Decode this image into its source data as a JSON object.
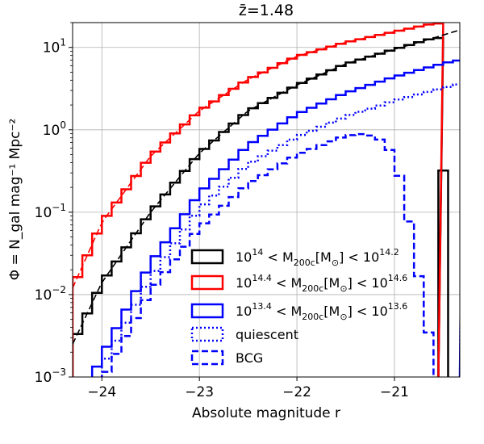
{
  "chart_data": {
    "type": "line",
    "title": "z̄=1.48",
    "xlabel": "Absolute magnitude r",
    "ylabel": "Φ = N_gal mag⁻¹ Mpc⁻²",
    "x_range": [
      -24.3,
      -20.33
    ],
    "y_range": [
      0.001,
      20
    ],
    "y_scale": "log",
    "grid": true,
    "x_ticks": [
      {
        "v": -24,
        "label": "−24"
      },
      {
        "v": -23,
        "label": "−23"
      },
      {
        "v": -22,
        "label": "−22"
      },
      {
        "v": -21,
        "label": "−21"
      }
    ],
    "y_ticks": [
      {
        "v": 0.001,
        "base": "10",
        "exp": "−3"
      },
      {
        "v": 0.01,
        "base": "10",
        "exp": "−2"
      },
      {
        "v": 0.1,
        "base": "10",
        "exp": "−1"
      },
      {
        "v": 1,
        "base": "10",
        "exp": "0"
      },
      {
        "v": 10,
        "base": "10",
        "exp": "1"
      }
    ],
    "legend_position": "lower-right",
    "legend": [
      {
        "key": "black",
        "style": "solid",
        "color": "#000000",
        "parts": [
          "10",
          "14",
          " < M",
          "200c",
          "[M",
          "⊙",
          "] < 10",
          "14.2"
        ]
      },
      {
        "key": "red",
        "style": "solid",
        "color": "#ff0000",
        "parts": [
          "10",
          "14.4",
          " < M",
          "200c",
          "[M",
          "⊙",
          "] < 10",
          "14.6"
        ]
      },
      {
        "key": "blue",
        "style": "solid",
        "color": "#0000ff",
        "parts": [
          "10",
          "13.4",
          " < M",
          "200c",
          "[M",
          "⊙",
          "] < 10",
          "13.6"
        ]
      },
      {
        "key": "quiescent",
        "style": "dotted",
        "color": "#0000ff",
        "parts": [
          "quiescent"
        ]
      },
      {
        "key": "bcg",
        "style": "dashed",
        "color": "#0000ff",
        "parts": [
          "BCG"
        ]
      }
    ],
    "bin_width": 0.1,
    "series": [
      {
        "key": "black",
        "color": "#000000",
        "style": "solid",
        "x0": -24.3,
        "x1": -20.55,
        "anchors": [
          [
            -24.3,
            0.0025
          ],
          [
            -24.0,
            0.014
          ],
          [
            -23.5,
            0.1
          ],
          [
            -23.0,
            0.52
          ],
          [
            -22.5,
            1.7
          ],
          [
            -22.0,
            3.5
          ],
          [
            -21.5,
            6.3
          ],
          [
            -21.0,
            9.5
          ],
          [
            -20.6,
            13
          ]
        ],
        "end_drop": 0.32
      },
      {
        "key": "red",
        "color": "#ff0000",
        "style": "solid",
        "x0": -24.3,
        "x1": -20.55,
        "anchors": [
          [
            -24.3,
            0.012
          ],
          [
            -24.0,
            0.075
          ],
          [
            -23.5,
            0.48
          ],
          [
            -23.0,
            1.7
          ],
          [
            -22.5,
            4.1
          ],
          [
            -22.0,
            7.8
          ],
          [
            -21.5,
            11.5
          ],
          [
            -21.0,
            15.5
          ],
          [
            -20.6,
            19.5
          ]
        ]
      },
      {
        "key": "blue",
        "color": "#0000ff",
        "style": "solid",
        "x0": -24.2,
        "x1": -20.33,
        "anchors": [
          [
            -24.2,
            0.00055
          ],
          [
            -24.0,
            0.0018
          ],
          [
            -23.5,
            0.024
          ],
          [
            -23.0,
            0.17
          ],
          [
            -22.5,
            0.65
          ],
          [
            -22.0,
            1.55
          ],
          [
            -21.5,
            2.8
          ],
          [
            -21.0,
            4.4
          ],
          [
            -20.5,
            6.4
          ],
          [
            -20.33,
            7.0
          ]
        ]
      },
      {
        "key": "quiescent",
        "color": "#0000ff",
        "style": "dotted",
        "x0": -24.2,
        "x1": -20.33,
        "anchors": [
          [
            -24.2,
            0.0004
          ],
          [
            -24.0,
            0.0013
          ],
          [
            -23.5,
            0.016
          ],
          [
            -23.0,
            0.11
          ],
          [
            -22.5,
            0.38
          ],
          [
            -22.0,
            0.82
          ],
          [
            -21.5,
            1.45
          ],
          [
            -21.0,
            2.25
          ],
          [
            -20.5,
            3.2
          ],
          [
            -20.33,
            3.6
          ]
        ]
      },
      {
        "key": "bcg",
        "color": "#0000ff",
        "style": "dashed",
        "x0": -24.2,
        "x1": -20.6,
        "anchors": [
          [
            -24.2,
            0.0003
          ],
          [
            -24.0,
            0.0009
          ],
          [
            -23.5,
            0.011
          ],
          [
            -23.0,
            0.065
          ],
          [
            -22.5,
            0.22
          ],
          [
            -22.0,
            0.5
          ],
          [
            -21.5,
            0.85
          ],
          [
            -21.3,
            0.9
          ],
          [
            -21.1,
            0.72
          ],
          [
            -21.0,
            0.45
          ],
          [
            -20.9,
            0.17
          ],
          [
            -20.8,
            0.035
          ],
          [
            -20.7,
            0.008
          ],
          [
            -20.6,
            0.0015
          ]
        ]
      }
    ],
    "fits": [
      {
        "key": "black-fit",
        "color": "#000000",
        "style": "dashed",
        "x0": -24.3,
        "x1": -20.35,
        "anchors": [
          [
            -24.3,
            0.0025
          ],
          [
            -24.0,
            0.014
          ],
          [
            -23.5,
            0.1
          ],
          [
            -23.0,
            0.52
          ],
          [
            -22.5,
            1.7
          ],
          [
            -22.0,
            3.5
          ],
          [
            -21.5,
            6.3
          ],
          [
            -21.0,
            9.5
          ],
          [
            -20.6,
            13
          ],
          [
            -20.35,
            16
          ]
        ]
      },
      {
        "key": "red-fit",
        "color": "#ff0000",
        "style": "dashed",
        "x0": -24.3,
        "x1": -20.6,
        "anchors": [
          [
            -24.3,
            0.012
          ],
          [
            -24.0,
            0.075
          ],
          [
            -23.5,
            0.48
          ],
          [
            -23.0,
            1.7
          ],
          [
            -22.5,
            4.1
          ],
          [
            -22.0,
            7.8
          ],
          [
            -21.5,
            11.5
          ],
          [
            -21.0,
            15.5
          ],
          [
            -20.6,
            19.5
          ]
        ]
      }
    ]
  }
}
